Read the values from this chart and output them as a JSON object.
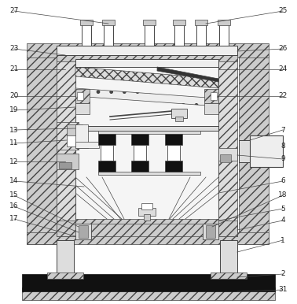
{
  "bg_color": "#ffffff",
  "lc": "#555555",
  "dark": "#111111",
  "mid": "#aaaaaa",
  "light": "#dddddd",
  "figsize": [
    3.78,
    3.86
  ],
  "dpi": 100
}
